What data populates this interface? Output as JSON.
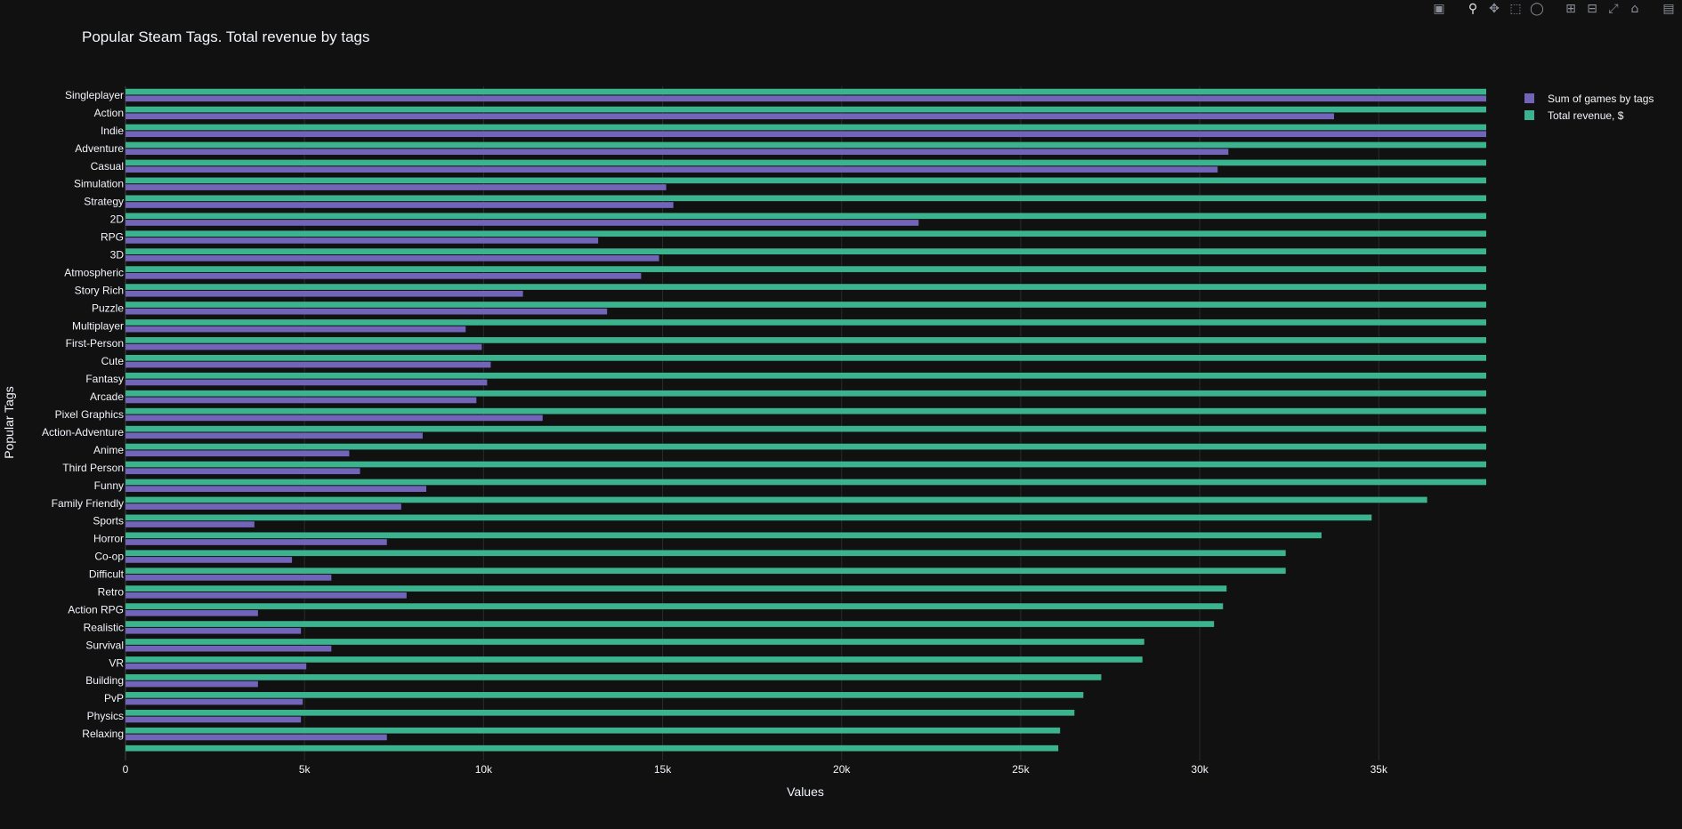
{
  "modebar": {
    "icons": [
      "camera-icon",
      "zoom-icon",
      "pan-icon",
      "box-select-icon",
      "lasso-icon",
      "zoom-in-icon",
      "zoom-out-icon",
      "autoscale-icon",
      "home-icon",
      "plotly-logo-icon"
    ]
  },
  "colors": {
    "background": "#111111",
    "games": "#7264b8",
    "revenue": "#3cb38f",
    "grid": "#2b2b2b",
    "text": "#f2f5fa"
  },
  "chart_data": {
    "type": "bar",
    "orientation": "horizontal",
    "title": "Popular Steam Tags. Total revenue by tags",
    "xlabel": "Values",
    "ylabel": "Popular Tags",
    "xlim": [
      0,
      38000
    ],
    "xticks": [
      0,
      5000,
      10000,
      15000,
      20000,
      25000,
      30000,
      35000
    ],
    "xtick_labels": [
      "0",
      "5k",
      "10k",
      "15k",
      "20k",
      "25k",
      "30k",
      "35k"
    ],
    "grid": true,
    "legend_position": "top-right",
    "categories": [
      "Singleplayer",
      "Action",
      "Indie",
      "Adventure",
      "Casual",
      "Simulation",
      "Strategy",
      "2D",
      "RPG",
      "3D",
      "Atmospheric",
      "Story Rich",
      "Puzzle",
      "Multiplayer",
      "First-Person",
      "Cute",
      "Fantasy",
      "Arcade",
      "Pixel Graphics",
      "Action-Adventure",
      "Anime",
      "Third Person",
      "Funny",
      "Family Friendly",
      "Sports",
      "Horror",
      "Co-op",
      "Difficult",
      "Retro",
      "Action RPG",
      "Realistic",
      "Survival",
      "VR",
      "Building",
      "PvP",
      "Physics",
      "Relaxing",
      ""
    ],
    "series": [
      {
        "name": "Sum of games by tags",
        "values": [
          38000,
          33750,
          38000,
          30800,
          30500,
          15100,
          15300,
          22150,
          13200,
          14900,
          14400,
          11100,
          13450,
          9500,
          9950,
          10200,
          10100,
          9800,
          11650,
          8300,
          6250,
          6550,
          8400,
          7700,
          3600,
          7300,
          4650,
          5750,
          7850,
          3700,
          4900,
          5750,
          5050,
          3700,
          4950,
          4900,
          7300,
          null
        ]
      },
      {
        "name": "Total revenue, $",
        "values": [
          38000,
          38000,
          38000,
          38000,
          38000,
          38000,
          38000,
          38000,
          38000,
          38000,
          38000,
          38000,
          38000,
          38000,
          38000,
          38000,
          38000,
          38000,
          38000,
          38000,
          38000,
          38000,
          38000,
          36350,
          34800,
          33400,
          32400,
          32400,
          30750,
          30650,
          30400,
          28450,
          28400,
          27250,
          26750,
          26500,
          26100,
          26050
        ]
      }
    ]
  }
}
